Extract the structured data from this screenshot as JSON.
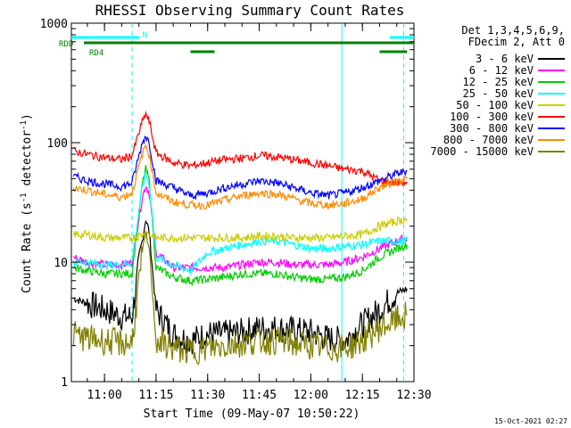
{
  "chart_data": {
    "type": "line",
    "title": "RHESSI Observing Summary Count Rates",
    "xlabel": "Start Time (09-May-07 10:50:22)",
    "ylabel": "Count Rate (s",
    "ylabel_sup1": "-1",
    "ylabel_mid": " detector",
    "ylabel_sup2": "-1",
    "ylabel_end": ")",
    "y_scale": "log",
    "ylim": [
      1,
      1000
    ],
    "xlim": [
      "10:50:22",
      "12:30"
    ],
    "x_ticks": [
      "11:00",
      "11:15",
      "11:30",
      "11:45",
      "12:00",
      "12:15",
      "12:30"
    ],
    "y_ticks": [
      "1",
      "10",
      "100",
      "1000"
    ],
    "grid": false,
    "legend_header": [
      "Det 1,3,4,5,6,9,",
      "FDecim 2, Att 0"
    ],
    "legend_placement": "right",
    "footer_date": "15-Oct-2021 02:27",
    "flags": [
      {
        "label": "N",
        "color": "#00ffff",
        "segments": [
          [
            "10:50:22",
            "11:10"
          ],
          [
            "12:23",
            "12:30"
          ]
        ]
      },
      {
        "label": "RDD",
        "color": "#008000",
        "segments": [
          [
            "10:54",
            "11:27"
          ],
          [
            "11:27",
            "11:31"
          ],
          [
            "11:31",
            "12:30"
          ]
        ]
      },
      {
        "label": "RD4",
        "color": "#008000",
        "segments": [
          [
            "11:25",
            "11:32"
          ],
          [
            "12:20",
            "12:28"
          ]
        ]
      }
    ],
    "x_markers_dashed": [
      "11:08",
      "12:27"
    ],
    "x_markers_solid": [
      "12:09"
    ],
    "series": [
      {
        "name": "3 - 6 keV",
        "color": "#000000",
        "x": [
          "10:51",
          "10:55",
          "11:00",
          "11:05",
          "11:08",
          "11:11",
          "11:12",
          "11:13",
          "11:15",
          "11:20",
          "11:25",
          "11:30",
          "11:35",
          "11:40",
          "11:45",
          "11:50",
          "11:55",
          "12:00",
          "12:05",
          "12:10",
          "12:15",
          "12:20",
          "12:25",
          "12:28"
        ],
        "values": [
          5,
          4.5,
          4,
          3.5,
          3.5,
          15,
          23,
          18,
          4,
          2.5,
          2.2,
          2.5,
          2.5,
          2.6,
          2.8,
          2.8,
          2.7,
          2.6,
          2.3,
          2.2,
          3,
          4,
          5.5,
          6
        ]
      },
      {
        "name": "6 - 12 keV",
        "color": "#ff00ff",
        "x": [
          "10:51",
          "10:55",
          "11:00",
          "11:05",
          "11:08",
          "11:11",
          "11:12",
          "11:13",
          "11:15",
          "11:20",
          "11:25",
          "11:30",
          "11:35",
          "11:40",
          "11:45",
          "11:50",
          "11:55",
          "12:00",
          "12:05",
          "12:10",
          "12:15",
          "12:20",
          "12:25",
          "12:28"
        ],
        "values": [
          11,
          10,
          9.5,
          9.5,
          10,
          35,
          44,
          38,
          12,
          9,
          9,
          9,
          9,
          9.5,
          10,
          10,
          9.5,
          9.5,
          9.5,
          10,
          11,
          13,
          15,
          16
        ]
      },
      {
        "name": "12 - 25 keV",
        "color": "#00cc00",
        "x": [
          "10:51",
          "10:55",
          "11:00",
          "11:05",
          "11:08",
          "11:11",
          "11:12",
          "11:13",
          "11:15",
          "11:20",
          "11:25",
          "11:30",
          "11:35",
          "11:40",
          "11:45",
          "11:50",
          "11:55",
          "12:00",
          "12:05",
          "12:10",
          "12:15",
          "12:20",
          "12:25",
          "12:28"
        ],
        "values": [
          9,
          8.5,
          8,
          8,
          8,
          45,
          60,
          48,
          9,
          7.5,
          7,
          7.2,
          7.5,
          8,
          8,
          8,
          7.5,
          7.2,
          7.2,
          7.5,
          8.5,
          11,
          13,
          14
        ]
      },
      {
        "name": "25 - 50 keV",
        "color": "#00ffff",
        "x": [
          "10:51",
          "10:55",
          "11:00",
          "11:05",
          "11:08",
          "11:11",
          "11:12",
          "11:13",
          "11:15",
          "11:20",
          "11:25",
          "11:30",
          "11:35",
          "11:40",
          "11:45",
          "11:50",
          "11:55",
          "12:00",
          "12:05",
          "12:10",
          "12:15",
          "12:20",
          "12:25",
          "12:28"
        ],
        "values": [
          10,
          10,
          9.5,
          9.5,
          10,
          42,
          55,
          45,
          11,
          9.5,
          8.5,
          12,
          13,
          14,
          15,
          15,
          14,
          13,
          13,
          13.5,
          14,
          15,
          15,
          15
        ]
      },
      {
        "name": "50 - 100 keV",
        "color": "#cccc00",
        "x": [
          "10:51",
          "10:55",
          "11:00",
          "11:05",
          "11:08",
          "11:11",
          "11:12",
          "11:13",
          "11:15",
          "11:20",
          "11:25",
          "11:30",
          "11:35",
          "11:40",
          "11:45",
          "11:50",
          "11:55",
          "12:00",
          "12:05",
          "12:10",
          "12:15",
          "12:20",
          "12:25",
          "12:28"
        ],
        "values": [
          17,
          17,
          16,
          16,
          16,
          17,
          18,
          17,
          16,
          16,
          16,
          16,
          16,
          16,
          16.5,
          16.5,
          16,
          16,
          16,
          16.5,
          17,
          20,
          22,
          23
        ]
      },
      {
        "name": "100 - 300 keV",
        "color": "#ff0000",
        "x": [
          "10:51",
          "10:55",
          "11:00",
          "11:05",
          "11:08",
          "11:11",
          "11:12",
          "11:13",
          "11:15",
          "11:20",
          "11:25",
          "11:30",
          "11:35",
          "11:40",
          "11:45",
          "11:50",
          "11:55",
          "12:00",
          "12:05",
          "12:10",
          "12:15",
          "12:20",
          "12:25",
          "12:28"
        ],
        "values": [
          85,
          80,
          75,
          72,
          78,
          150,
          175,
          150,
          82,
          68,
          64,
          68,
          72,
          74,
          78,
          76,
          72,
          68,
          64,
          60,
          58,
          48,
          46,
          47
        ]
      },
      {
        "name": "300 - 800 keV",
        "color": "#0000ff",
        "x": [
          "10:51",
          "10:55",
          "11:00",
          "11:05",
          "11:08",
          "11:11",
          "11:12",
          "11:13",
          "11:15",
          "11:20",
          "11:25",
          "11:30",
          "11:35",
          "11:40",
          "11:45",
          "11:50",
          "11:55",
          "12:00",
          "12:05",
          "12:10",
          "12:15",
          "12:20",
          "12:25",
          "12:28"
        ],
        "values": [
          52,
          48,
          45,
          43,
          46,
          100,
          115,
          100,
          48,
          42,
          36,
          38,
          42,
          45,
          48,
          46,
          42,
          38,
          36,
          38,
          42,
          48,
          55,
          58
        ]
      },
      {
        "name": "800 - 7000 keV",
        "color": "#ff8c00",
        "x": [
          "10:51",
          "10:55",
          "11:00",
          "11:05",
          "11:08",
          "11:11",
          "11:12",
          "11:13",
          "11:15",
          "11:20",
          "11:25",
          "11:30",
          "11:35",
          "11:40",
          "11:45",
          "11:50",
          "11:55",
          "12:00",
          "12:05",
          "12:10",
          "12:15",
          "12:20",
          "12:25",
          "12:28"
        ],
        "values": [
          42,
          40,
          37,
          35,
          38,
          80,
          95,
          80,
          38,
          32,
          30,
          30,
          33,
          36,
          38,
          37,
          34,
          31,
          30,
          31,
          34,
          42,
          48,
          50
        ]
      },
      {
        "name": "7000 - 15000 keV",
        "color": "#808000",
        "x": [
          "10:51",
          "10:55",
          "11:00",
          "11:05",
          "11:08",
          "11:11",
          "11:12",
          "11:13",
          "11:15",
          "11:20",
          "11:25",
          "11:30",
          "11:35",
          "11:40",
          "11:45",
          "11:50",
          "11:55",
          "12:00",
          "12:05",
          "12:10",
          "12:15",
          "12:20",
          "12:25",
          "12:28"
        ],
        "values": [
          2.5,
          2.3,
          2.2,
          2.1,
          2.1,
          12,
          17,
          13,
          2.2,
          1.9,
          1.8,
          1.9,
          2,
          2.1,
          2.2,
          2.2,
          2.1,
          2,
          1.9,
          1.9,
          2.2,
          2.8,
          3.3,
          3.6
        ]
      }
    ]
  }
}
